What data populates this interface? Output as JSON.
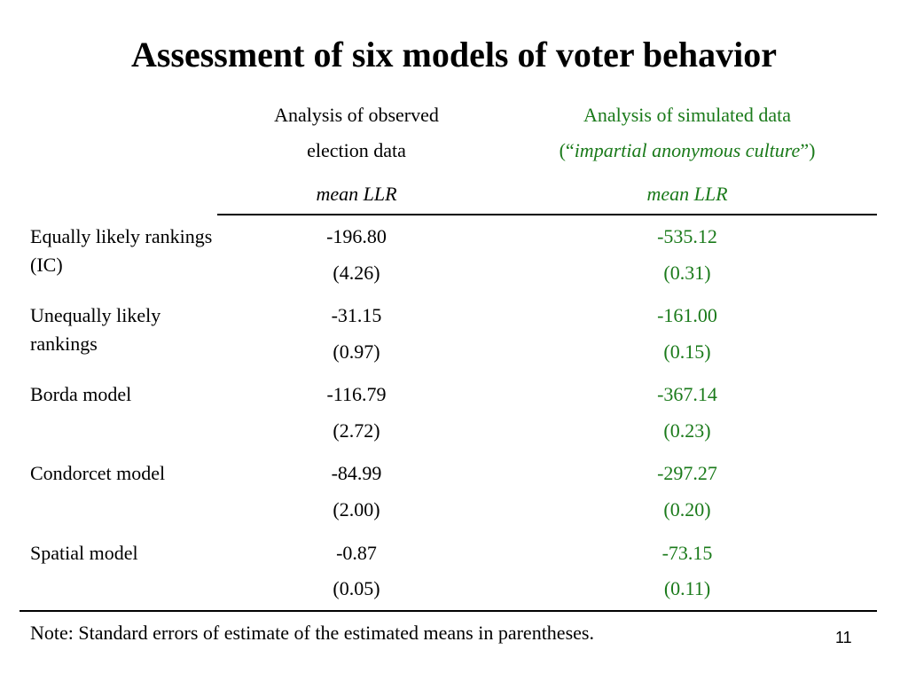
{
  "slide": {
    "title": "Assessment of six models of voter behavior",
    "page_number": "11",
    "note": "Note: Standard errors of estimate of the estimated means in parentheses."
  },
  "columns": {
    "observed": {
      "line1": "Analysis of observed",
      "line2": "election data",
      "sub": "mean LLR"
    },
    "simulated": {
      "line1": "Analysis of simulated data",
      "line2_open": "(“",
      "line2_italic": "impartial anonymous culture",
      "line2_close": "”)",
      "sub": "mean LLR"
    }
  },
  "rows": [
    {
      "label": "Equally likely rankings (IC)",
      "obs_mean": "-196.80",
      "obs_se": "(4.26)",
      "sim_mean": "-535.12",
      "sim_se": "(0.31)"
    },
    {
      "label": "Unequally likely rankings",
      "obs_mean": "-31.15",
      "obs_se": "(0.97)",
      "sim_mean": "-161.00",
      "sim_se": "(0.15)"
    },
    {
      "label": "Borda model",
      "obs_mean": "-116.79",
      "obs_se": "(2.72)",
      "sim_mean": "-367.14",
      "sim_se": "(0.23)"
    },
    {
      "label": "Condorcet model",
      "obs_mean": "-84.99",
      "obs_se": "(2.00)",
      "sim_mean": "-297.27",
      "sim_se": "(0.20)"
    },
    {
      "label": "Spatial model",
      "obs_mean": "-0.87",
      "obs_se": "(0.05)",
      "sim_mean": "-73.15",
      "sim_se": "(0.11)"
    }
  ],
  "colors": {
    "simulated_text": "#1a7a1a",
    "text": "#000000"
  }
}
